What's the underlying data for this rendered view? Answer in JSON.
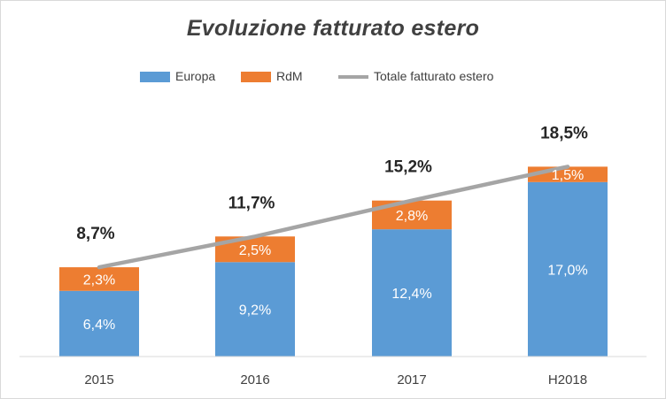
{
  "chart_data": {
    "type": "bar",
    "stacked": true,
    "title": "Evoluzione fatturato estero",
    "categories": [
      "2015",
      "2016",
      "2017",
      "H2018"
    ],
    "series": [
      {
        "name": "Europa",
        "type": "bar",
        "color": "#5b9bd5",
        "values": [
          6.4,
          9.2,
          12.4,
          17.0
        ],
        "labels": [
          "6,4%",
          "9,2%",
          "12,4%",
          "17,0%"
        ]
      },
      {
        "name": "RdM",
        "type": "bar",
        "color": "#ed7d31",
        "values": [
          2.3,
          2.5,
          2.8,
          1.5
        ],
        "labels": [
          "2,3%",
          "2,5%",
          "2,8%",
          "1,5%"
        ]
      },
      {
        "name": "Totale fatturato estero",
        "type": "line",
        "color": "#a5a5a5",
        "values": [
          8.7,
          11.7,
          15.2,
          18.5
        ],
        "labels": [
          "8,7%",
          "11,7%",
          "15,2%",
          "18,5%"
        ]
      }
    ],
    "ylim": [
      0,
      20
    ],
    "legend_position": "top",
    "grid": false
  }
}
